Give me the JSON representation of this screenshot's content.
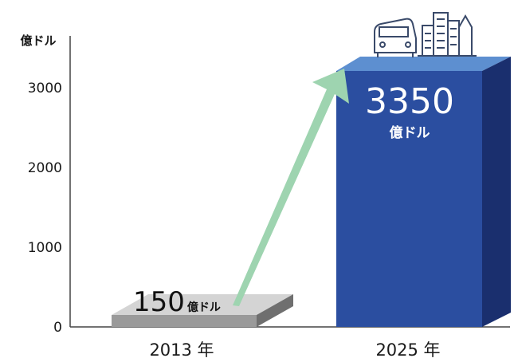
{
  "chart_data": {
    "type": "bar",
    "ylabel": "億ドル",
    "categories": [
      "2013 年",
      "2025 年"
    ],
    "values": [
      150,
      3350
    ],
    "ylim": [
      0,
      3600
    ],
    "yticks": [
      0,
      1000,
      2000,
      3000
    ],
    "labels": [
      {
        "value": "150",
        "unit": "億ドル"
      },
      {
        "value": "3350",
        "unit": "億ドル"
      }
    ],
    "colors": {
      "bar_2013_front": "#9a9a9a",
      "bar_2013_top": "#d4d4d4",
      "bar_2013_side": "#6f6f6f",
      "bar_2025_front": "#2b4ea0",
      "bar_2025_top": "#5d8fd0",
      "bar_2025_side": "#1a2f6e",
      "arrow": "#9ed4b0"
    },
    "icons": [
      "car-icon",
      "buildings-icon"
    ]
  }
}
